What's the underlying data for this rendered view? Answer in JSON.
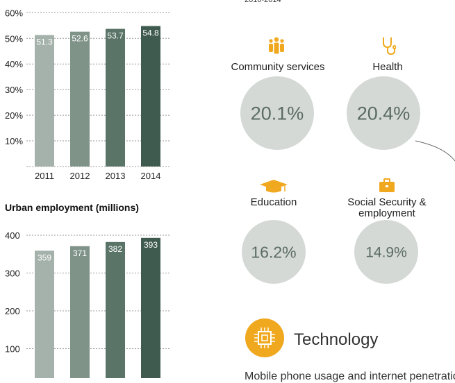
{
  "header_fragment": "2010-2014",
  "chart_data": [
    {
      "type": "bar",
      "title": "",
      "categories": [
        "2011",
        "2012",
        "2013",
        "2014"
      ],
      "values": [
        51.3,
        52.6,
        53.7,
        54.8
      ],
      "value_labels": [
        "51.3",
        "52.6",
        "53.7",
        "54.8"
      ],
      "ylim": [
        0,
        60
      ],
      "yticks": [
        10,
        20,
        30,
        40,
        50,
        60
      ],
      "ytick_labels": [
        "10%",
        "20%",
        "30%",
        "40%",
        "50%",
        "60%"
      ],
      "grid": true,
      "bar_colors": [
        "#a5b2ab",
        "#7f9389",
        "#5a7468",
        "#3f5a4f"
      ]
    },
    {
      "type": "bar",
      "title": "Urban employment (millions)",
      "categories": [
        "2011",
        "2012",
        "2013",
        "2014"
      ],
      "values": [
        359,
        371,
        382,
        393
      ],
      "value_labels": [
        "359",
        "371",
        "382",
        "393"
      ],
      "ylim": [
        0,
        400
      ],
      "yticks": [
        100,
        200,
        300,
        400
      ],
      "ytick_labels": [
        "100",
        "200",
        "300",
        "400"
      ],
      "grid": true,
      "bar_colors": [
        "#a5b2ab",
        "#7f9389",
        "#5a7468",
        "#3f5a4f"
      ]
    }
  ],
  "services": [
    {
      "label": "Community services",
      "value": "20.1%",
      "icon": "people-icon"
    },
    {
      "label": "Health",
      "value": "20.4%",
      "icon": "stethoscope-icon"
    },
    {
      "label": "Education",
      "value": "16.2%",
      "icon": "graduation-cap-icon"
    },
    {
      "label": "Social Security & employment",
      "value": "14.9%",
      "icon": "briefcase-icon"
    }
  ],
  "technology": {
    "label": "Technology",
    "icon": "chip-icon"
  },
  "bottom_text": "Mobile phone usage and internet penetratio",
  "colors": {
    "accent": "#f0a81e",
    "circle": "#d4d9d6",
    "circle_text": "#5b6b64",
    "grid": "#999999"
  }
}
